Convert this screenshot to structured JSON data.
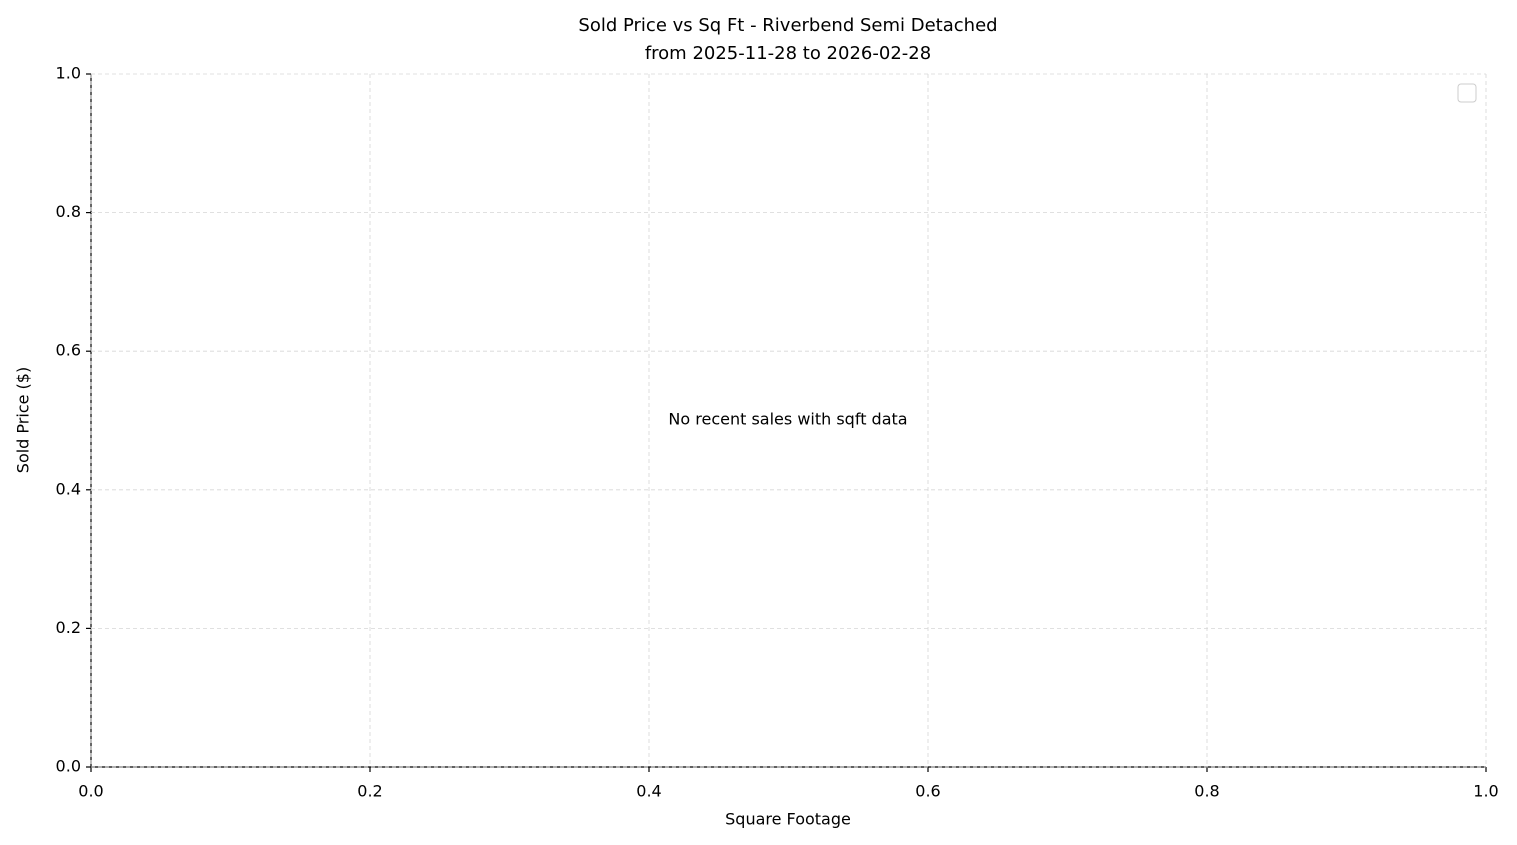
{
  "chart_data": {
    "type": "scatter",
    "title": "Sold Price vs Sq Ft - Riverbend Semi Detached",
    "subtitle": "from 2025-11-28 to 2026-02-28",
    "x_label": "Square Footage",
    "y_label": "Sold Price ($)",
    "annotation": "No recent sales with sqft data",
    "series": [],
    "xlim": [
      0,
      1
    ],
    "ylim": [
      0,
      1
    ],
    "xticks": [
      {
        "value": 0,
        "label": "0.0"
      },
      0.2,
      0.4,
      0.6,
      0.8,
      {
        "value": 1,
        "label": "1.0"
      }
    ],
    "yticks": [
      {
        "value": 0,
        "label": "0.0"
      },
      0.2,
      0.4,
      0.6,
      0.8,
      {
        "value": 1,
        "label": "1.0"
      }
    ],
    "grid": true,
    "legend": "upper right"
  }
}
